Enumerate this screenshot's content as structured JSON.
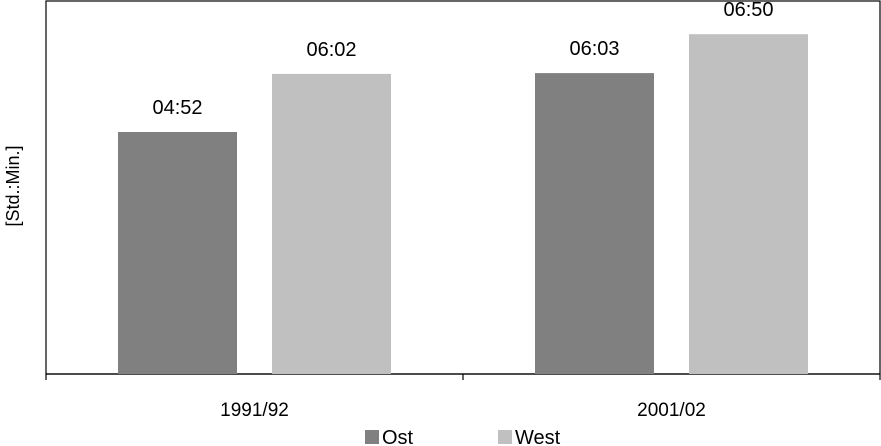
{
  "chart_data": {
    "type": "bar",
    "categories": [
      "1991/92",
      "2001/02"
    ],
    "series": [
      {
        "name": "Ost",
        "values": [
          292,
          363
        ],
        "labels": [
          "04:52",
          "06:03"
        ],
        "color": "#808080"
      },
      {
        "name": "West",
        "values": [
          362,
          410
        ],
        "labels": [
          "06:02",
          "06:50"
        ],
        "color": "#c0c0c0"
      }
    ],
    "ylabel": "[Std.:Min.]",
    "xlabel": "",
    "ylim": [
      0,
      450
    ],
    "grid": false,
    "legend_position": "bottom"
  }
}
